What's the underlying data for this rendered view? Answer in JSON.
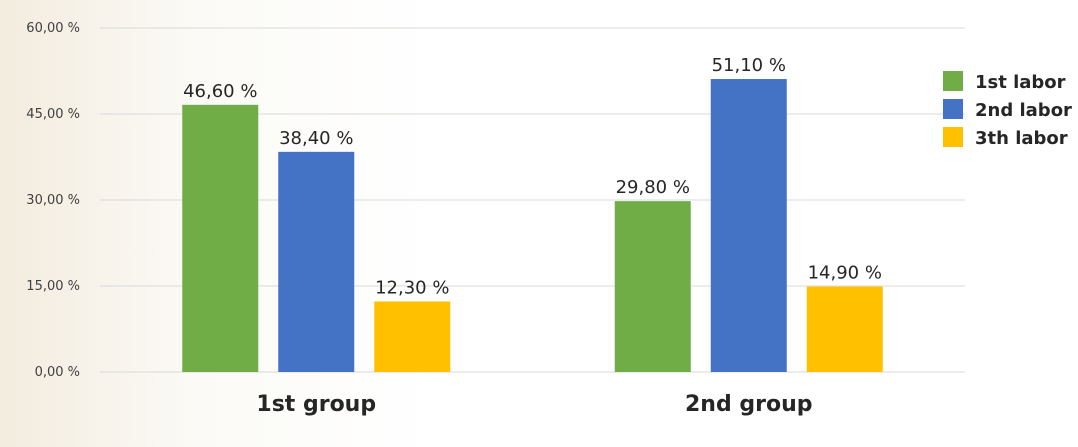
{
  "chart_data": {
    "type": "bar",
    "categories": [
      "1st group",
      "2nd group"
    ],
    "series": [
      {
        "name": "1st labor",
        "values": [
          46.6,
          29.8
        ],
        "labels": [
          "46,60 %",
          "29,80 %"
        ],
        "color": "#70ad47"
      },
      {
        "name": "2nd labor",
        "values": [
          38.4,
          51.1
        ],
        "labels": [
          "38,40 %",
          "51,10 %"
        ],
        "color": "#4472c4"
      },
      {
        "name": "3th labor",
        "values": [
          12.3,
          14.9
        ],
        "labels": [
          "12,30 %",
          "14,90 %"
        ],
        "color": "#ffc000"
      }
    ],
    "yticks": [
      0,
      15,
      30,
      45,
      60
    ],
    "ytick_labels": [
      "0,00 %",
      "15,00 %",
      "30,00 %",
      "45,00 %",
      "60,00 %"
    ],
    "ylim": [
      0,
      60
    ],
    "grid": true,
    "legend_position": "right"
  }
}
